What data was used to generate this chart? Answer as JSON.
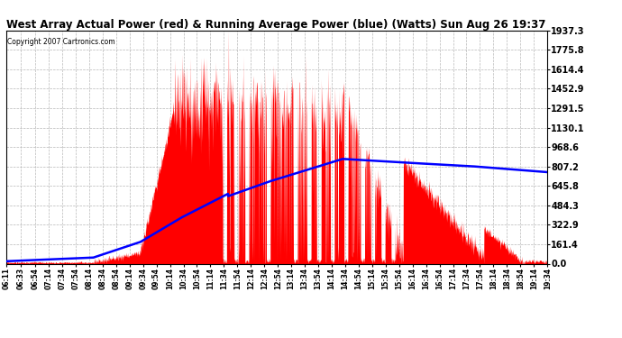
{
  "title": "West Array Actual Power (red) & Running Average Power (blue) (Watts) Sun Aug 26 19:37",
  "copyright": "Copyright 2007 Cartronics.com",
  "bg_color": "#ffffff",
  "plot_bg_color": "#ffffff",
  "grid_color": "#b8b8b8",
  "red_color": "#ff0000",
  "blue_color": "#0000ff",
  "ymin": 0.0,
  "ymax": 1937.3,
  "ytick_values": [
    0.0,
    161.4,
    322.9,
    484.3,
    645.8,
    807.2,
    968.6,
    1130.1,
    1291.5,
    1452.9,
    1614.4,
    1775.8,
    1937.3
  ],
  "ytick_labels": [
    "0.0",
    "161.4",
    "322.9",
    "484.3",
    "645.8",
    "807.2",
    "968.6",
    "1130.1",
    "1291.5",
    "1452.9",
    "1614.4",
    "1775.8",
    "1937.3"
  ],
  "xtick_labels": [
    "06:11",
    "06:33",
    "06:54",
    "07:14",
    "07:34",
    "07:54",
    "08:14",
    "08:34",
    "08:54",
    "09:14",
    "09:34",
    "09:54",
    "10:14",
    "10:34",
    "10:54",
    "11:14",
    "11:34",
    "11:54",
    "12:14",
    "12:34",
    "12:54",
    "13:14",
    "13:34",
    "13:54",
    "14:14",
    "14:34",
    "14:54",
    "15:14",
    "15:34",
    "15:54",
    "16:14",
    "16:34",
    "16:54",
    "17:14",
    "17:34",
    "17:54",
    "18:14",
    "18:34",
    "18:54",
    "19:14",
    "19:34"
  ],
  "figsize": [
    6.9,
    3.75
  ],
  "dpi": 100
}
